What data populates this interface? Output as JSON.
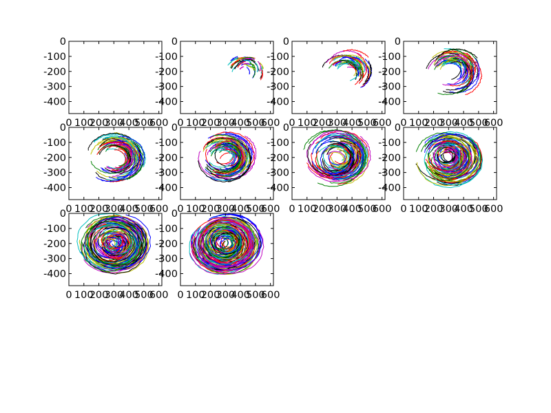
{
  "chart_data": {
    "type": "line",
    "layout": {
      "rows": 3,
      "cols": 4,
      "panel_count": 10
    },
    "x_ticks": [
      "0",
      "100",
      "200",
      "300",
      "400",
      "500",
      "600"
    ],
    "y_ticks": [
      "0",
      "-100",
      "-200",
      "-300",
      "-400"
    ],
    "xlim": [
      0,
      620
    ],
    "ylim": [
      -480,
      0
    ],
    "grid": false,
    "legend": "none",
    "title": "",
    "xlabel": "",
    "ylabel": "",
    "line_colors": [
      "#0000ff",
      "#008000",
      "#ff0000",
      "#00bfbf",
      "#bf00bf",
      "#bfbf00",
      "#000000"
    ],
    "center": {
      "x": 300,
      "y": -200
    },
    "panels": [
      {
        "index": 1,
        "n_curves": 0,
        "radius_range": [
          0,
          0
        ],
        "extent_deg": [
          0,
          0
        ],
        "x_shift": 0
      },
      {
        "index": 2,
        "n_curves": 40,
        "radius_range": [
          55,
          115
        ],
        "extent_deg": [
          30,
          70
        ],
        "x_shift": 130
      },
      {
        "index": 3,
        "n_curves": 60,
        "radius_range": [
          60,
          145
        ],
        "extent_deg": [
          50,
          110
        ],
        "x_shift": 60
      },
      {
        "index": 4,
        "n_curves": 70,
        "radius_range": [
          70,
          165
        ],
        "extent_deg": [
          70,
          150
        ],
        "x_shift": 25
      },
      {
        "index": 5,
        "n_curves": 75,
        "radius_range": [
          70,
          180
        ],
        "extent_deg": [
          90,
          190
        ],
        "x_shift": 10
      },
      {
        "index": 6,
        "n_curves": 80,
        "radius_range": [
          60,
          190
        ],
        "extent_deg": [
          110,
          230
        ],
        "x_shift": 0
      },
      {
        "index": 7,
        "n_curves": 85,
        "radius_range": [
          50,
          200
        ],
        "extent_deg": [
          140,
          270
        ],
        "x_shift": 0
      },
      {
        "index": 8,
        "n_curves": 90,
        "radius_range": [
          40,
          210
        ],
        "extent_deg": [
          170,
          300
        ],
        "x_shift": 0
      },
      {
        "index": 9,
        "n_curves": 100,
        "radius_range": [
          35,
          215
        ],
        "extent_deg": [
          200,
          330
        ],
        "x_shift": 0
      },
      {
        "index": 10,
        "n_curves": 110,
        "radius_range": [
          30,
          220
        ],
        "extent_deg": [
          220,
          345
        ],
        "x_shift": 0
      }
    ]
  }
}
